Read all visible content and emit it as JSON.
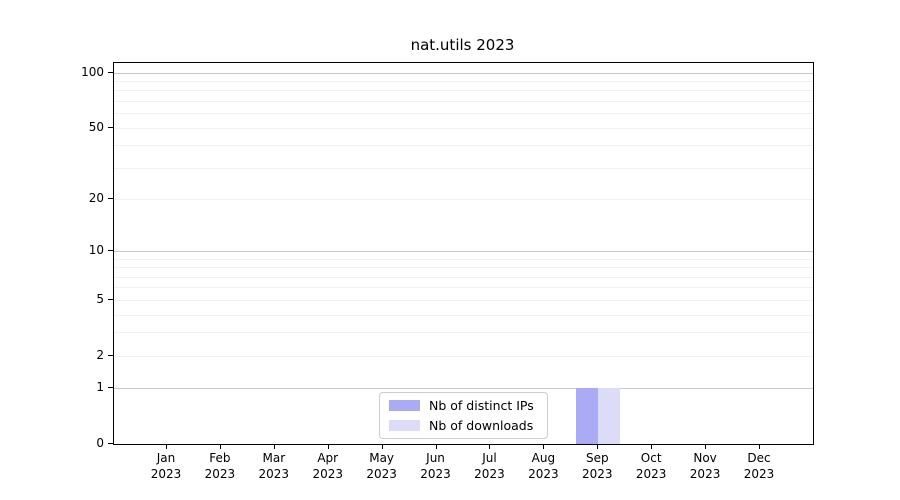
{
  "chart_data": {
    "type": "bar",
    "title": "nat.utils 2023",
    "x_tick_labels": [
      {
        "month": "Jan",
        "year": "2023"
      },
      {
        "month": "Feb",
        "year": "2023"
      },
      {
        "month": "Mar",
        "year": "2023"
      },
      {
        "month": "Apr",
        "year": "2023"
      },
      {
        "month": "May",
        "year": "2023"
      },
      {
        "month": "Jun",
        "year": "2023"
      },
      {
        "month": "Jul",
        "year": "2023"
      },
      {
        "month": "Aug",
        "year": "2023"
      },
      {
        "month": "Sep",
        "year": "2023"
      },
      {
        "month": "Oct",
        "year": "2023"
      },
      {
        "month": "Nov",
        "year": "2023"
      },
      {
        "month": "Dec",
        "year": "2023"
      }
    ],
    "series": [
      {
        "name": "Nb of distinct IPs",
        "color": "#aaaaf5",
        "values": [
          0,
          0,
          0,
          0,
          0,
          0,
          0,
          0,
          1,
          0,
          0,
          0
        ]
      },
      {
        "name": "Nb of downloads",
        "color": "#dcdcf9",
        "values": [
          0,
          0,
          0,
          0,
          0,
          0,
          0,
          0,
          1,
          0,
          0,
          0
        ]
      }
    ],
    "y_axis": {
      "scale": "log1p",
      "tick_values": [
        0,
        1,
        2,
        5,
        10,
        20,
        50,
        100
      ],
      "major_gridlines": [
        1,
        10,
        100
      ],
      "minor_gridlines": [
        2,
        3,
        4,
        5,
        6,
        7,
        8,
        9,
        20,
        30,
        40,
        50,
        60,
        70,
        80,
        90
      ],
      "range": [
        0,
        113
      ]
    },
    "legend": {
      "position": "bottom-center"
    },
    "colors": {
      "major_grid": "#c9c9c9",
      "minor_grid": "#f0f0f0",
      "axis": "#000000",
      "background": "#ffffff"
    }
  }
}
